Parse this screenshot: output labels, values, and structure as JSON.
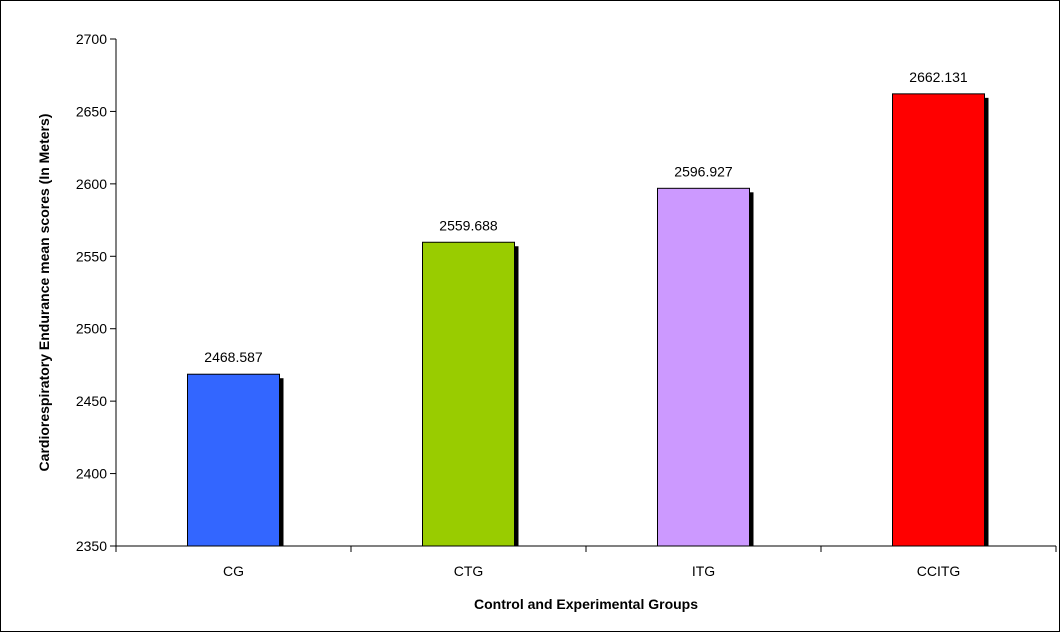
{
  "chart_data": {
    "type": "bar",
    "title": "",
    "xlabel": "Control and Experimental Groups",
    "ylabel": "Cardiorespiratory Endurance mean scores (In Meters)",
    "categories": [
      "CG",
      "CTG",
      "ITG",
      "CCITG"
    ],
    "values": [
      2468.587,
      2559.688,
      2596.927,
      2662.131
    ],
    "value_labels": [
      "2468.587",
      "2559.688",
      "2596.927",
      "2662.131"
    ],
    "colors": [
      "#3366ff",
      "#99cc00",
      "#cc99ff",
      "#ff0000"
    ],
    "ylim": [
      2350,
      2700
    ],
    "yticks": [
      2350,
      2400,
      2450,
      2500,
      2550,
      2600,
      2650,
      2700
    ],
    "grid": false,
    "legend": "none"
  }
}
